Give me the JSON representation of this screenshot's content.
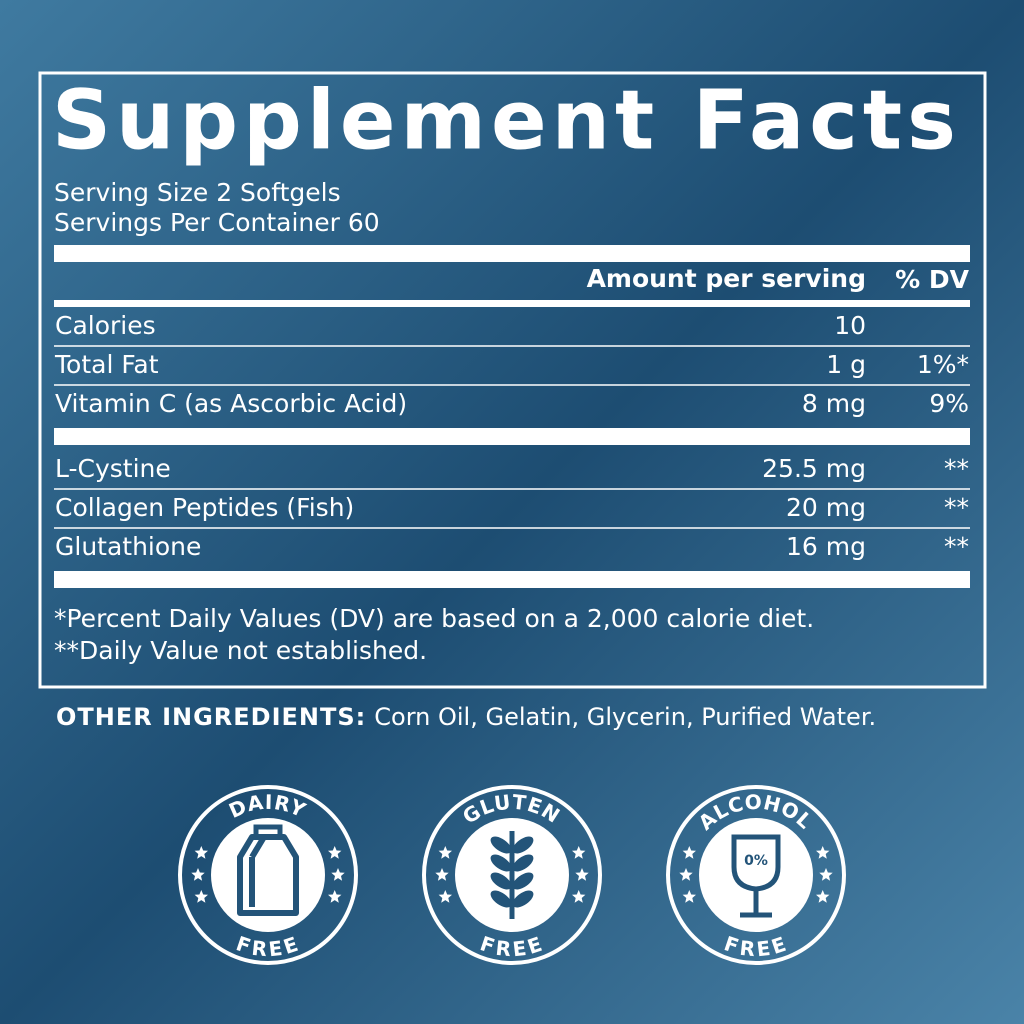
{
  "title": "Supplement Facts",
  "serving_size": "Serving Size 2 Softgels",
  "servings_per_container": "Servings Per Container 60",
  "header": {
    "amount": "Amount per serving",
    "dv": "% DV"
  },
  "sections": [
    {
      "rows": [
        {
          "name": "Calories",
          "amount": "10"
        },
        {
          "name": "Total Fat",
          "amount": "1 g",
          "dv": "1%*"
        },
        {
          "name": "Vitamin C (as Ascorbic Acid)",
          "amount": "8 mg",
          "dv": "9%"
        }
      ]
    },
    {
      "rows": [
        {
          "name": "L-Cystine",
          "amount": "25.5 mg",
          "dv": "**"
        },
        {
          "name": "Collagen Peptides (Fish)",
          "amount": "20 mg",
          "dv": "**"
        },
        {
          "name": "Glutathione",
          "amount": "16 mg",
          "dv": "**"
        }
      ]
    }
  ],
  "footnotes": [
    "*Percent Daily Values (DV) are based on a 2,000 calorie diet.",
    "**Daily Value not established."
  ],
  "other_ingredients": {
    "label": "OTHER INGREDIENTS:",
    "text": "Corn Oil, Gelatin, Glycerin, Purified Water."
  },
  "badges": [
    {
      "top": "DAIRY",
      "bottom": "FREE",
      "icon": "carton"
    },
    {
      "top": "GLUTEN",
      "bottom": "FREE",
      "icon": "wheat"
    },
    {
      "top": "ALCOHOL",
      "bottom": "FREE",
      "icon": "glass",
      "icon_text": "0%"
    }
  ]
}
